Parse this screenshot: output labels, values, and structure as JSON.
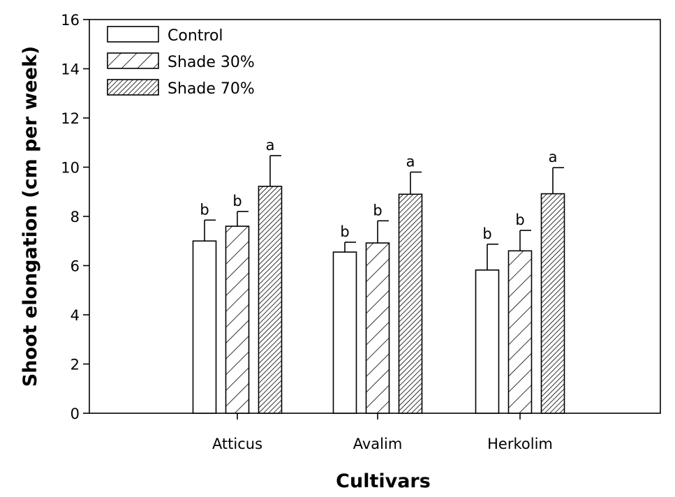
{
  "chart_data": {
    "type": "bar",
    "title": "",
    "xlabel": "Cultivars",
    "ylabel": "Shoot elongation (cm per week)",
    "ylim": [
      0,
      16
    ],
    "yticks": [
      "0",
      "2",
      "4",
      "6",
      "8",
      "10",
      "12",
      "14",
      "16"
    ],
    "categories": [
      "Atticus",
      "Avalim",
      "Herkolim"
    ],
    "grid": false,
    "legend_position": "top-left",
    "series": [
      {
        "name": "Control",
        "pattern": "open",
        "values": [
          7.0,
          6.55,
          5.82
        ],
        "errors": [
          0.85,
          0.4,
          1.05
        ],
        "labels": [
          "b",
          "b",
          "b"
        ]
      },
      {
        "name": "Shade 30%",
        "pattern": "sparse-hatch",
        "values": [
          7.6,
          6.92,
          6.6
        ],
        "errors": [
          0.6,
          0.9,
          0.83
        ],
        "labels": [
          "b",
          "b",
          "b"
        ]
      },
      {
        "name": "Shade 70%",
        "pattern": "dense-hatch",
        "values": [
          9.22,
          8.9,
          8.92
        ],
        "errors": [
          1.25,
          0.9,
          1.06
        ],
        "labels": [
          "a",
          "a",
          "a"
        ]
      }
    ],
    "colors": {
      "fill": "#ffffff",
      "stroke": "#000000"
    }
  }
}
